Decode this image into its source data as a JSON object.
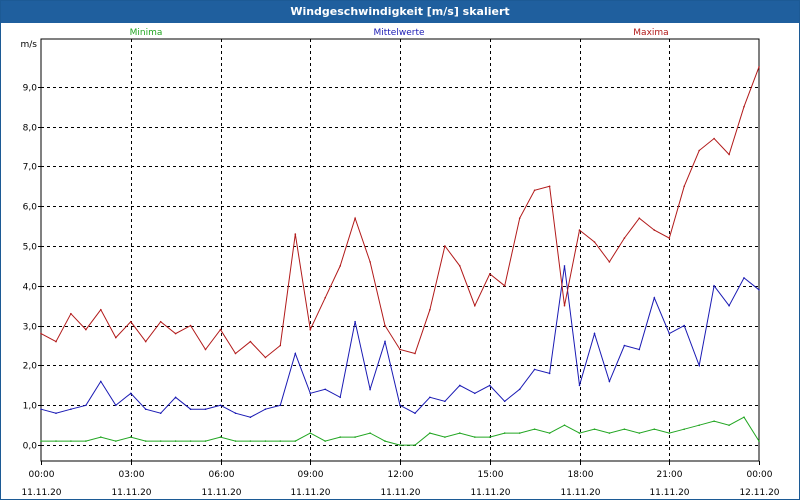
{
  "window": {
    "title": "Windgeschwindigkeit [m/s] skaliert"
  },
  "chart_data": {
    "type": "line",
    "title": "Windgeschwindigkeit [m/s] skaliert",
    "ylabel": "m/s",
    "xlabel": "",
    "ylim": [
      -0.4,
      10.2
    ],
    "y_ticks": [
      "0,0",
      "1,0",
      "2,0",
      "3,0",
      "4,0",
      "5,0",
      "6,0",
      "7,0",
      "8,0",
      "9,0"
    ],
    "x_ticks": [
      {
        "time": "00:00",
        "date": "11.11.20"
      },
      {
        "time": "03:00",
        "date": "11.11.20"
      },
      {
        "time": "06:00",
        "date": "11.11.20"
      },
      {
        "time": "09:00",
        "date": "11.11.20"
      },
      {
        "time": "12:00",
        "date": "11.11.20"
      },
      {
        "time": "15:00",
        "date": "11.11.20"
      },
      {
        "time": "18:00",
        "date": "11.11.20"
      },
      {
        "time": "21:00",
        "date": "11.11.20"
      },
      {
        "time": "00:00",
        "date": "12.11.20"
      }
    ],
    "x_unit": "hours from 00:00 11.11.20",
    "xlim": [
      0,
      24
    ],
    "grid": true,
    "legend_position": "top",
    "series": [
      {
        "name": "Minima",
        "color": "#22a622",
        "x": [
          0,
          0.5,
          1,
          1.5,
          2,
          2.5,
          3,
          3.5,
          4,
          4.5,
          5,
          5.5,
          6,
          6.5,
          7,
          7.5,
          8,
          8.5,
          9,
          9.5,
          10,
          10.5,
          11,
          11.5,
          12,
          12.5,
          13,
          13.5,
          14,
          14.5,
          15,
          15.5,
          16,
          16.5,
          17,
          17.5,
          18,
          18.5,
          19,
          19.5,
          20,
          20.5,
          21,
          21.5,
          22,
          22.5,
          23,
          23.5,
          24
        ],
        "values": [
          0.1,
          0.1,
          0.1,
          0.1,
          0.2,
          0.1,
          0.2,
          0.1,
          0.1,
          0.1,
          0.1,
          0.1,
          0.2,
          0.1,
          0.1,
          0.1,
          0.1,
          0.1,
          0.3,
          0.1,
          0.2,
          0.2,
          0.3,
          0.1,
          0.0,
          0.0,
          0.3,
          0.2,
          0.3,
          0.2,
          0.2,
          0.3,
          0.3,
          0.4,
          0.3,
          0.5,
          0.3,
          0.4,
          0.3,
          0.4,
          0.3,
          0.4,
          0.3,
          0.4,
          0.5,
          0.6,
          0.5,
          0.7,
          0.1
        ]
      },
      {
        "name": "Mittelwerte",
        "color": "#1a1ab4",
        "x": [
          0,
          0.5,
          1,
          1.5,
          2,
          2.5,
          3,
          3.5,
          4,
          4.5,
          5,
          5.5,
          6,
          6.5,
          7,
          7.5,
          8,
          8.5,
          9,
          9.5,
          10,
          10.5,
          11,
          11.5,
          12,
          12.5,
          13,
          13.5,
          14,
          14.5,
          15,
          15.5,
          16,
          16.5,
          17,
          17.5,
          18,
          18.5,
          19,
          19.5,
          20,
          20.5,
          21,
          21.5,
          22,
          22.5,
          23,
          23.5,
          24
        ],
        "values": [
          0.9,
          0.8,
          0.9,
          1.0,
          1.6,
          1.0,
          1.3,
          0.9,
          0.8,
          1.2,
          0.9,
          0.9,
          1.0,
          0.8,
          0.7,
          0.9,
          1.0,
          2.3,
          1.3,
          1.4,
          1.2,
          3.1,
          1.4,
          2.6,
          1.0,
          0.8,
          1.2,
          1.1,
          1.5,
          1.3,
          1.5,
          1.1,
          1.4,
          1.9,
          1.8,
          4.5,
          1.5,
          2.8,
          1.6,
          2.5,
          2.4,
          3.7,
          2.8,
          3.0,
          2.0,
          4.0,
          3.5,
          4.2,
          3.9
        ]
      },
      {
        "name": "Maxima",
        "color": "#b21a1a",
        "x": [
          0,
          0.5,
          1,
          1.5,
          2,
          2.5,
          3,
          3.5,
          4,
          4.5,
          5,
          5.5,
          6,
          6.5,
          7,
          7.5,
          8,
          8.5,
          9,
          9.5,
          10,
          10.5,
          11,
          11.5,
          12,
          12.5,
          13,
          13.5,
          14,
          14.5,
          15,
          15.5,
          16,
          16.5,
          17,
          17.5,
          18,
          18.5,
          19,
          19.5,
          20,
          20.5,
          21,
          21.5,
          22,
          22.5,
          23,
          23.5,
          24
        ],
        "values": [
          2.8,
          2.6,
          3.3,
          2.9,
          3.4,
          2.7,
          3.1,
          2.6,
          3.1,
          2.8,
          3.0,
          2.4,
          2.9,
          2.3,
          2.6,
          2.2,
          2.5,
          5.3,
          2.9,
          3.7,
          4.5,
          5.7,
          4.6,
          3.0,
          2.4,
          2.3,
          3.4,
          5.0,
          4.5,
          3.5,
          4.3,
          4.0,
          5.7,
          6.4,
          6.5,
          3.5,
          5.4,
          5.1,
          4.6,
          5.2,
          5.7,
          5.4,
          5.2,
          6.5,
          7.4,
          7.7,
          7.3,
          8.5,
          9.5
        ]
      }
    ]
  }
}
